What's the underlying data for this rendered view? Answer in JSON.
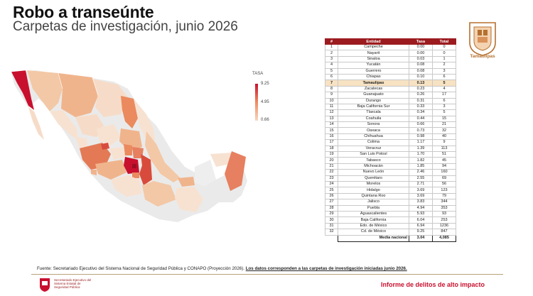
{
  "header": {
    "title": "Robo a transeúnte",
    "subtitle": "Carpetas de investigación, junio 2026"
  },
  "legend": {
    "title": "TASA",
    "max": "9.25",
    "mid": "4.95",
    "min": "0.66"
  },
  "logo": {
    "label": "Tamaulipas",
    "icon": "tamaulipas-coat-of-arms-icon"
  },
  "table": {
    "columns": [
      "#",
      "Entidad",
      "Tasa",
      "Total"
    ],
    "rows": [
      [
        "1",
        "Campeche",
        "0.00",
        "0"
      ],
      [
        "2",
        "Nayarit",
        "0.00",
        "0"
      ],
      [
        "3",
        "Sinaloa",
        "0.03",
        "1"
      ],
      [
        "4",
        "Yucatán",
        "0.08",
        "2"
      ],
      [
        "5",
        "Guerrero",
        "0.08",
        "3"
      ],
      [
        "6",
        "Chiapas",
        "0.10",
        "6"
      ],
      [
        "7",
        "Tamaulipas",
        "0.13",
        "5"
      ],
      [
        "8",
        "Zacatecas",
        "0.23",
        "4"
      ],
      [
        "9",
        "Guanajuato",
        "0.26",
        "17"
      ],
      [
        "10",
        "Durango",
        "0.31",
        "6"
      ],
      [
        "11",
        "Baja California Sur",
        "0.33",
        "3"
      ],
      [
        "12",
        "Tlaxcala",
        "0.34",
        "5"
      ],
      [
        "13",
        "Coahuila",
        "0.44",
        "15"
      ],
      [
        "14",
        "Sonora",
        "0.66",
        "21"
      ],
      [
        "15",
        "Oaxaca",
        "0.73",
        "32"
      ],
      [
        "16",
        "Chihuahua",
        "0.98",
        "40"
      ],
      [
        "17",
        "Colima",
        "1.17",
        "9"
      ],
      [
        "18",
        "Veracruz",
        "1.39",
        "113"
      ],
      [
        "19",
        "San Luis Potosí",
        "1.70",
        "51"
      ],
      [
        "20",
        "Tabasco",
        "1.82",
        "45"
      ],
      [
        "21",
        "Michoacán",
        "1.85",
        "94"
      ],
      [
        "22",
        "Nuevo León",
        "2.46",
        "160"
      ],
      [
        "23",
        "Querétaro",
        "2.55",
        "69"
      ],
      [
        "24",
        "Morelos",
        "2.71",
        "56"
      ],
      [
        "25",
        "Hidalgo",
        "3.69",
        "123"
      ],
      [
        "26",
        "Quintana Roo",
        "3.69",
        "79"
      ],
      [
        "27",
        "Jalisco",
        "3.83",
        "344"
      ],
      [
        "28",
        "Puebla",
        "4.94",
        "353"
      ],
      [
        "29",
        "Aguascalientes",
        "5.93",
        "93"
      ],
      [
        "30",
        "Baja California",
        "6.04",
        "253"
      ],
      [
        "31",
        "Edo. de México",
        "6.94",
        "1236"
      ],
      [
        "32",
        "Cd. de México",
        "9.25",
        "847"
      ]
    ],
    "highlight_row": 7,
    "summary_label": "Media nacional",
    "summary_rate": "3.04",
    "summary_total": "4,085"
  },
  "footer": {
    "source": "Fuente: Secretariado Ejecutivo del Sistema Nacional de Seguridad Pública y CONAPO (Proyección 2026).",
    "note": "Los datos corresponden a las carpetas de investigación iniciadas junio 2026.",
    "org": "Secretariado Ejecutivo del Sistema Estatal de Seguridad Pública",
    "report": "Informe de delitos de alto impacto"
  },
  "colors": {
    "accent": "#c8102e",
    "header": "#9b1b1f",
    "highlight": "#f7e2c2",
    "gold": "#b5702f"
  }
}
